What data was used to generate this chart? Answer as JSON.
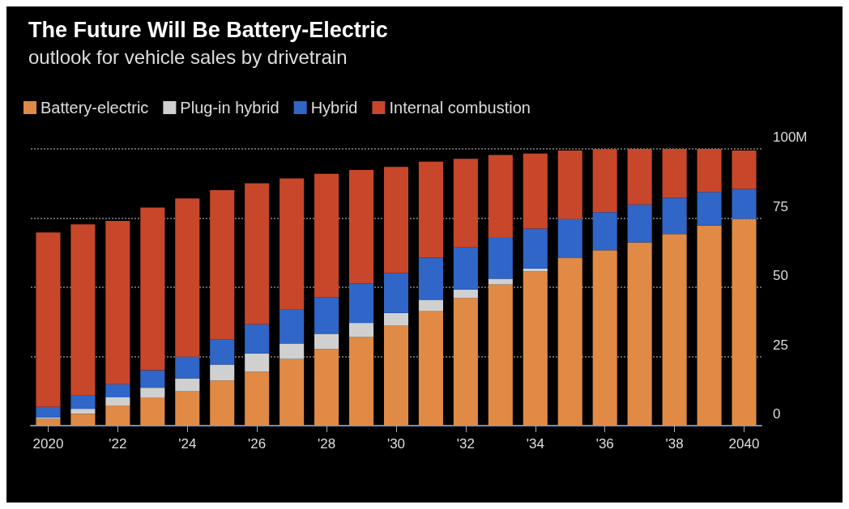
{
  "chart_data": {
    "type": "bar",
    "stacked": true,
    "title": "The Future Will Be Battery-Electric",
    "subtitle": "outlook for vehicle sales by drivetrain",
    "categories": [
      "2020",
      null,
      "'22",
      null,
      "'24",
      null,
      "'26",
      null,
      "'28",
      null,
      "'30",
      null,
      "'32",
      null,
      "'34",
      null,
      "'36",
      null,
      "'38",
      null,
      "2040"
    ],
    "series": [
      {
        "name": "Battery-electric",
        "color": "#e08a45",
        "values": [
          2.5,
          4.3,
          7.3,
          10.2,
          12.4,
          16.3,
          19.5,
          24.1,
          27.7,
          32,
          36.1,
          41.5,
          46.1,
          51,
          55.7,
          60.5,
          63.4,
          66.2,
          69.2,
          72.3,
          74.7
        ]
      },
      {
        "name": "Plug-in hybrid",
        "color": "#d0d0d0",
        "values": [
          0.5,
          1.8,
          2.9,
          3.5,
          4.7,
          5.8,
          6.6,
          5.6,
          5.5,
          5.1,
          4.6,
          4,
          3.1,
          2.1,
          1.1,
          0,
          0,
          0,
          0,
          0,
          0
        ]
      },
      {
        "name": "Hybrid",
        "color": "#2f66c8",
        "values": [
          3.8,
          4.8,
          4.8,
          6.3,
          7.8,
          9.1,
          10.5,
          12.2,
          13.2,
          14.2,
          14.4,
          15.2,
          15.2,
          15,
          14.4,
          14.2,
          13.7,
          13.7,
          13.1,
          12.1,
          10.8
        ]
      },
      {
        "name": "Internal combustion",
        "color": "#c8472a",
        "values": [
          63,
          61.8,
          59,
          58.8,
          57.2,
          53.9,
          51,
          47.4,
          44.6,
          41.1,
          38.4,
          34.7,
          32,
          29.7,
          27.1,
          24.7,
          22.8,
          20.1,
          17.7,
          15.6,
          13.9
        ]
      }
    ],
    "ylim": [
      0,
      100
    ],
    "yticks": [
      0,
      25,
      50,
      75,
      {
        "value": 100,
        "label": "100M"
      }
    ],
    "grid": "y",
    "legend": "top left"
  }
}
